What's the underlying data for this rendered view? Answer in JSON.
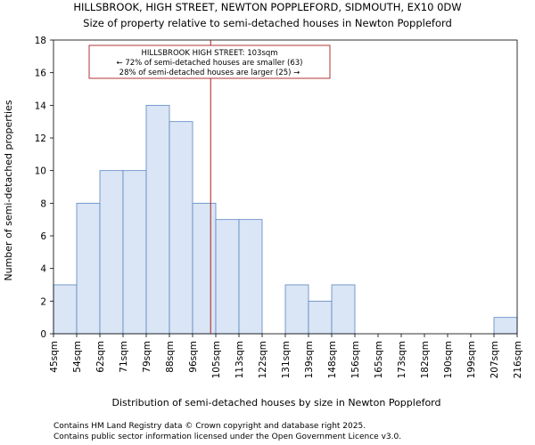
{
  "chart_data": {
    "type": "bar",
    "title": "HILLSBROOK, HIGH STREET, NEWTON POPPLEFORD, SIDMOUTH, EX10 0DW",
    "subtitle": "Size of property relative to semi-detached houses in Newton Poppleford",
    "xlabel": "Distribution of semi-detached houses by size in Newton Poppleford",
    "ylabel": "Number of semi-detached properties",
    "ylim": [
      0,
      18
    ],
    "yticks": [
      0,
      2,
      4,
      6,
      8,
      10,
      12,
      14,
      16,
      18
    ],
    "bin_edges": [
      "45sqm",
      "54sqm",
      "62sqm",
      "71sqm",
      "79sqm",
      "88sqm",
      "96sqm",
      "105sqm",
      "113sqm",
      "122sqm",
      "131sqm",
      "139sqm",
      "148sqm",
      "156sqm",
      "165sqm",
      "173sqm",
      "182sqm",
      "190sqm",
      "199sqm",
      "207sqm",
      "216sqm"
    ],
    "values": [
      3,
      8,
      10,
      10,
      14,
      13,
      8,
      7,
      7,
      0,
      3,
      2,
      3,
      0,
      0,
      0,
      0,
      0,
      0,
      1
    ],
    "marker_value_sqm": 103,
    "annotation": [
      "HILLSBROOK HIGH STREET: 103sqm",
      "← 72% of semi-detached houses are smaller (63)",
      "28% of semi-detached houses are larger (25) →"
    ],
    "bar_color": "#dae5f5",
    "bar_edge_color": "#5a86c2",
    "marker_color": "#aa1f1f",
    "grid": false,
    "legend": "none"
  },
  "footer": {
    "line1": "Contains HM Land Registry data © Crown copyright and database right 2025.",
    "line2": "Contains public sector information licensed under the Open Government Licence v3.0."
  }
}
